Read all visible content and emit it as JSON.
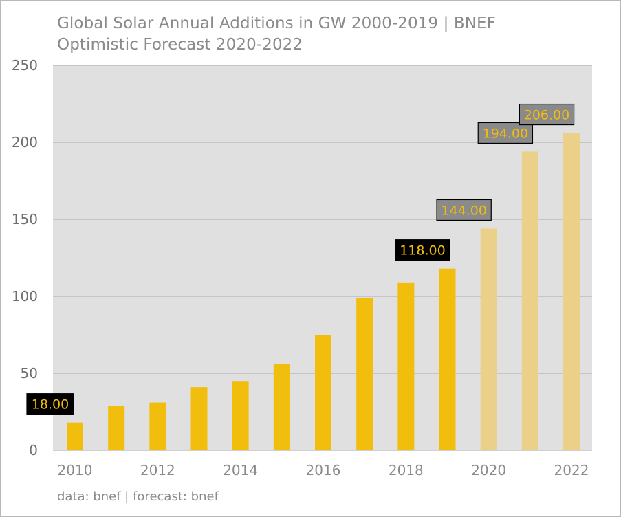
{
  "title_line1": "Global Solar Annual Additions in GW 2000-2019 | BNEF",
  "title_line2": "Optimistic Forecast 2020-2022",
  "caption": "data: bnef | forecast: bnef",
  "colors": {
    "actual_bar": "#f2be0e",
    "forecast_bar": "#ebd089",
    "plot_background": "#e0e0e0",
    "grid": "#b5b5b5",
    "label_actual_box": "#000000",
    "label_forecast_box": "#8a8a8a",
    "label_text": "#f2be0e"
  },
  "chart_data": {
    "type": "bar",
    "categories": [
      "2010",
      "2011",
      "2012",
      "2013",
      "2014",
      "2015",
      "2016",
      "2017",
      "2018",
      "2019",
      "2020",
      "2021",
      "2022"
    ],
    "values": [
      18,
      29,
      31,
      41,
      45,
      56,
      75,
      99,
      109,
      118,
      144,
      194,
      206
    ],
    "forecast": [
      false,
      false,
      false,
      false,
      false,
      false,
      false,
      false,
      false,
      false,
      true,
      true,
      true
    ],
    "data_labels": [
      {
        "category": "2010",
        "text": "18.00"
      },
      {
        "category": "2019",
        "text": "118.00"
      },
      {
        "category": "2020",
        "text": "144.00"
      },
      {
        "category": "2021",
        "text": "194.00"
      },
      {
        "category": "2022",
        "text": "206.00"
      }
    ],
    "x_tick_labels": [
      "2010",
      "2012",
      "2014",
      "2016",
      "2018",
      "2020",
      "2022"
    ],
    "y_ticks": [
      0,
      50,
      100,
      150,
      200,
      250
    ],
    "ylim": [
      0,
      250
    ],
    "xlabel": "",
    "ylabel": "",
    "grid": true,
    "legend": "none"
  }
}
